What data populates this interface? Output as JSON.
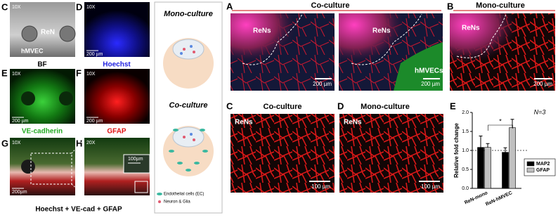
{
  "left_panels": [
    {
      "letter": "C",
      "magnification": "10X",
      "labels": [
        "ReN",
        "hMVEC"
      ],
      "caption": "BF"
    },
    {
      "letter": "D",
      "magnification": "10X",
      "scale": "200 µm",
      "caption": "Hoechst"
    },
    {
      "letter": "E",
      "magnification": "10X",
      "scale": "200 µm",
      "caption": "VE-cadherin"
    },
    {
      "letter": "F",
      "magnification": "10X",
      "scale": "200 µm",
      "caption": "GFAP"
    },
    {
      "letter": "G",
      "magnification": "10X",
      "scale": "200µm"
    },
    {
      "letter": "H",
      "magnification": "20X",
      "scale": "100µm"
    }
  ],
  "merged_caption": "Hoechst + VE-cad + GFAP",
  "schematic": {
    "mono_title": "Mono-culture",
    "co_title": "Co-culture",
    "legend": [
      "Endothelial cells (EC)",
      "Neuron & Glia"
    ]
  },
  "panel_A": {
    "letter": "A",
    "title": "Co-culture",
    "images": [
      {
        "labels": [
          "ReNs"
        ],
        "scale": "200 µm"
      },
      {
        "labels": [
          "ReNs",
          "hMVECs"
        ],
        "scale": "200 µm"
      }
    ]
  },
  "panel_B": {
    "letter": "B",
    "title": "Mono-culture",
    "label": "ReNs",
    "scale": "200 µm"
  },
  "panel_C": {
    "letter": "C",
    "title": "Co-culture",
    "label": "ReNs",
    "scale": "100 µm"
  },
  "panel_D": {
    "letter": "D",
    "title": "Mono-culture",
    "label": "ReNs",
    "scale": "100 µm"
  },
  "panel_E": {
    "letter": "E",
    "note": "N=3"
  },
  "chart_data": {
    "type": "bar",
    "y_label": "Relative fold change",
    "categories": [
      "ReN-mono",
      "ReN-hMVEC"
    ],
    "series": [
      {
        "name": "MAP2",
        "color": "#000000",
        "values": [
          1.08,
          0.95
        ],
        "errors": [
          0.3,
          0.12
        ]
      },
      {
        "name": "GFAP",
        "color": "#c0c0c0",
        "values": [
          1.08,
          1.6
        ],
        "errors": [
          0.1,
          0.22
        ]
      }
    ],
    "ylim": [
      0,
      2
    ],
    "yticks": [
      {
        "value": 0,
        "label": "0.0"
      },
      {
        "value": 0.5,
        "label": "0.5"
      },
      {
        "value": 1,
        "label": "1.0"
      },
      {
        "value": 1.5,
        "label": "1.5"
      },
      {
        "value": 2,
        "label": "2.0"
      }
    ],
    "reference_line": 1,
    "annotation": "*",
    "legend": "right"
  }
}
